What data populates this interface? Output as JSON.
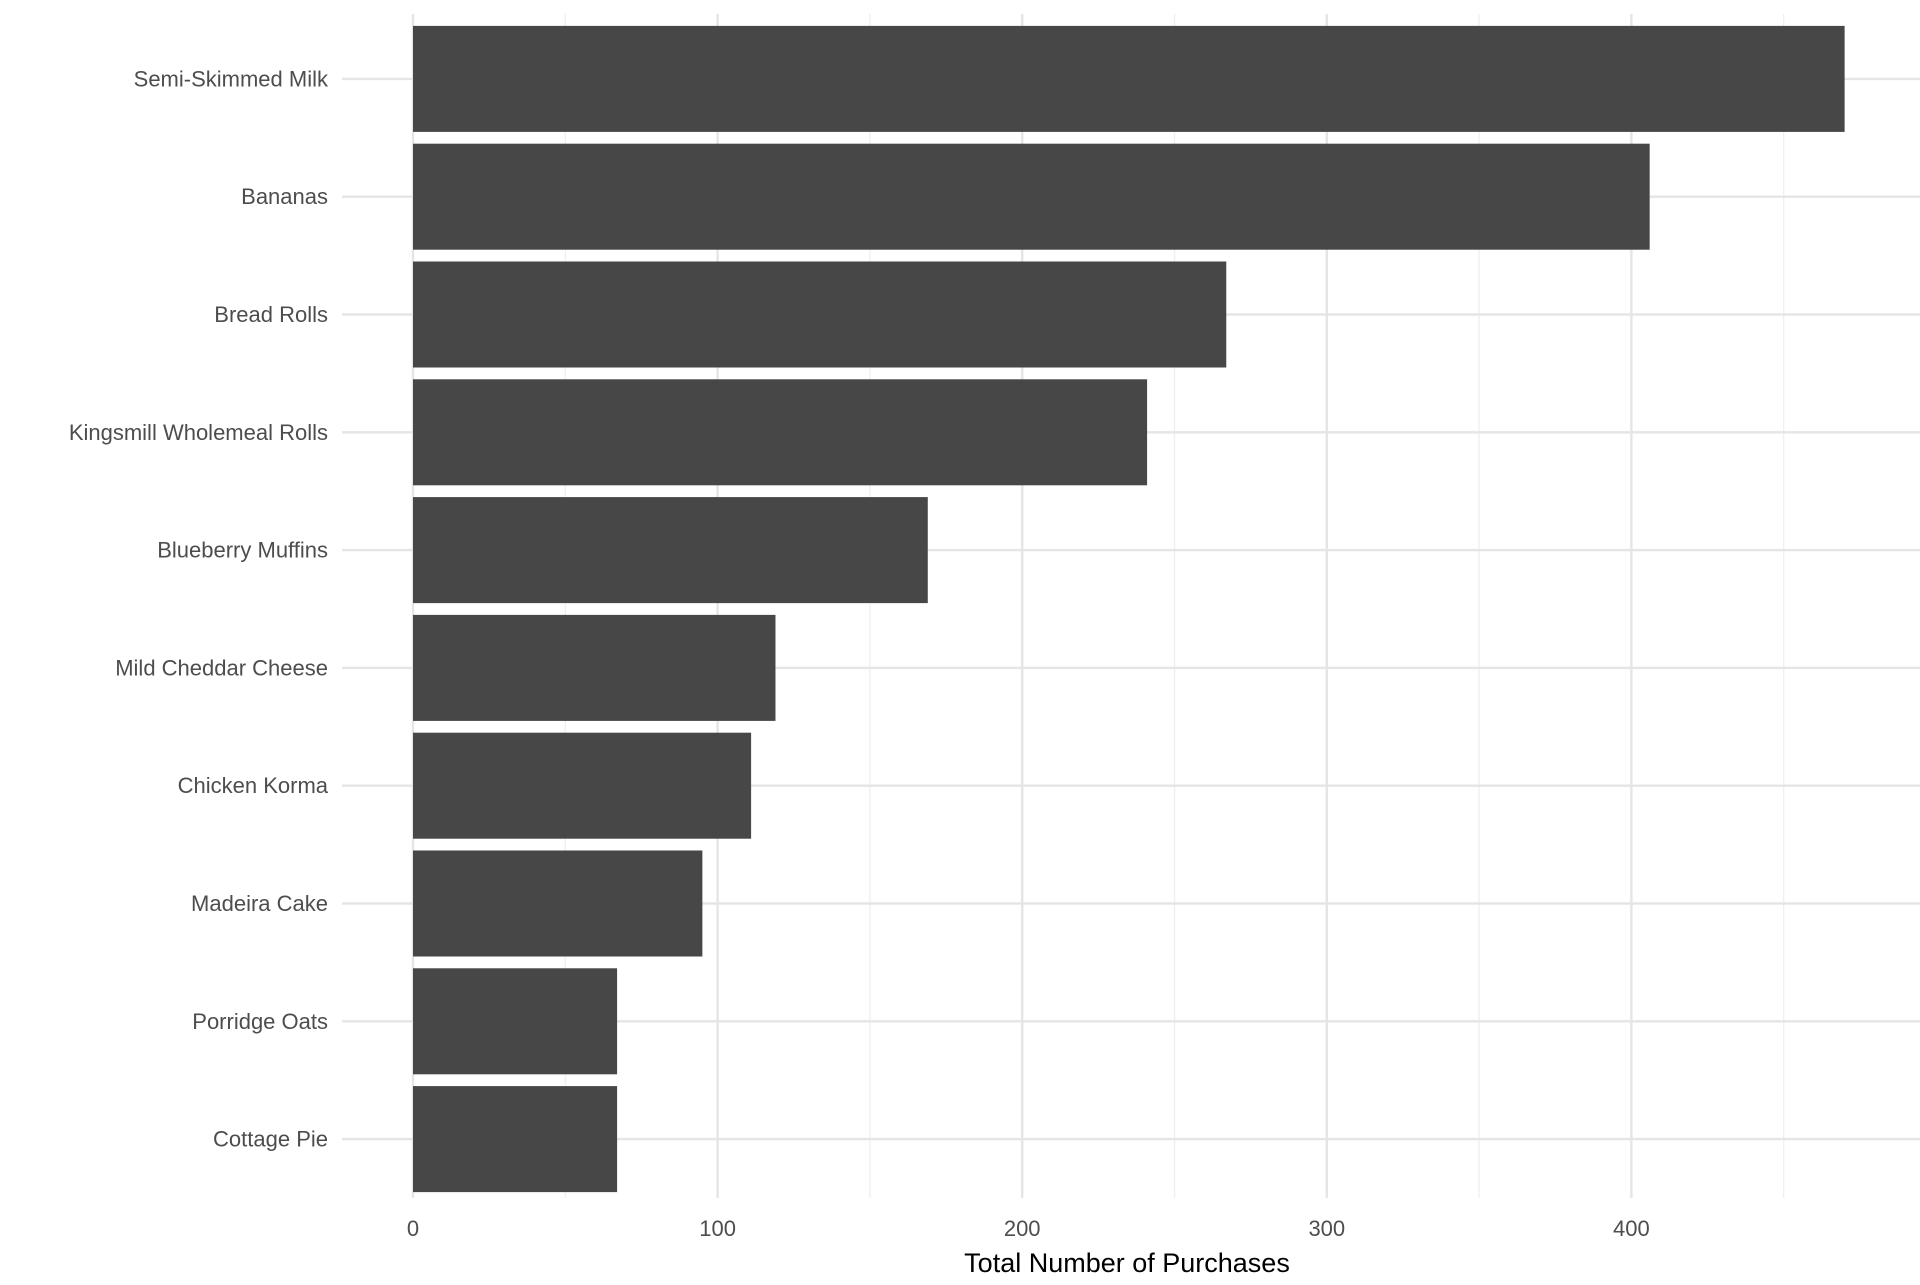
{
  "chart_data": {
    "type": "bar",
    "orientation": "horizontal",
    "title": "",
    "xlabel": "Total Number of Purchases",
    "ylabel": "",
    "categories": [
      "Semi-Skimmed Milk",
      "Bananas",
      "Bread Rolls",
      "Kingsmill Wholemeal Rolls",
      "Blueberry Muffins",
      "Mild Cheddar Cheese",
      "Chicken Korma",
      "Madeira Cake",
      "Porridge Oats",
      "Cottage Pie"
    ],
    "values": [
      470,
      406,
      267,
      241,
      169,
      119,
      111,
      95,
      67,
      67
    ],
    "xlim": [
      0,
      490
    ],
    "x_ticks": [
      0,
      100,
      200,
      300,
      400
    ],
    "x_tick_labels": [
      "0",
      "100",
      "200",
      "300",
      "400"
    ],
    "grid": true,
    "legend": "none",
    "colors": {
      "bar": "#474747",
      "grid_major": "#e5e5e5",
      "grid_minor": "#efefef",
      "tick_text": "#4d4d4d",
      "axis_title": "#000000",
      "background": "#ffffff"
    }
  }
}
